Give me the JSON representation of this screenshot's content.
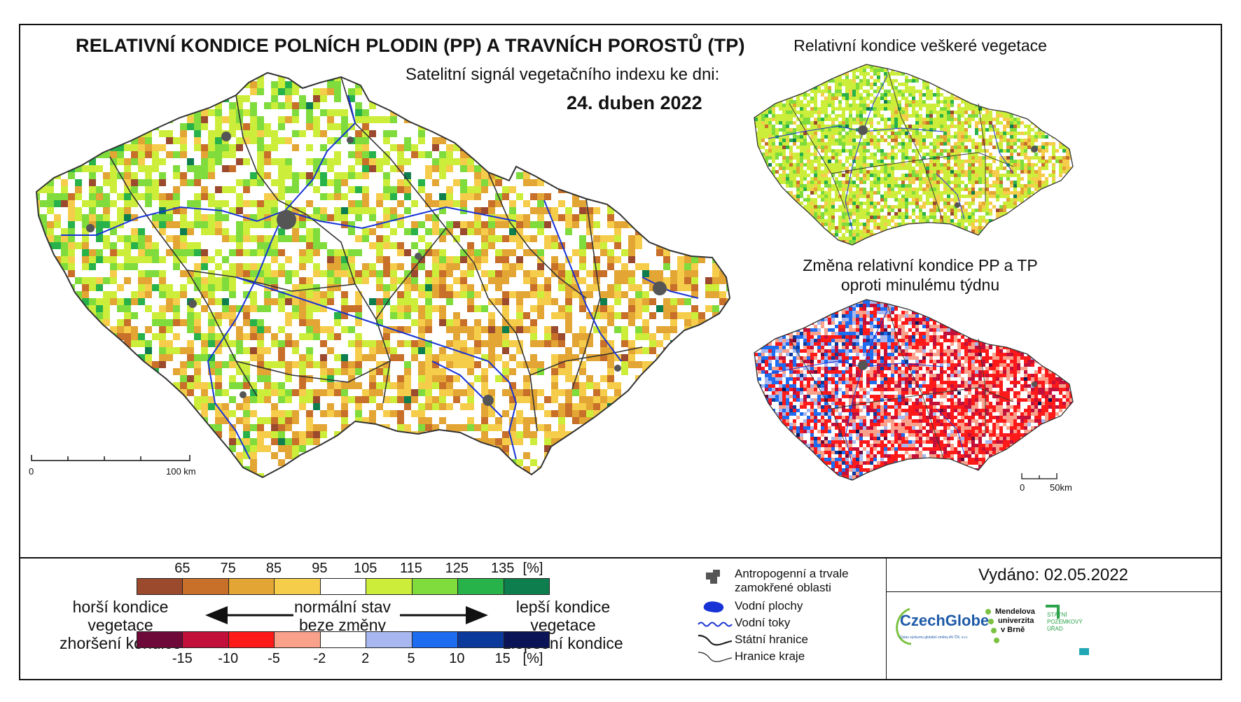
{
  "title": "RELATIVNÍ KONDICE POLNÍCH PLODIN (PP) A TRAVNÍCH POROSTŮ (TP)",
  "subtitle": "Satelitní signál vegetačního indexu ke dni:",
  "date": "24. duben 2022",
  "inset_vegetation_title": "Relativní kondice veškeré vegetace",
  "inset_change_title_line1": "Změna relativní kondice PP a TP",
  "inset_change_title_line2": "oproti minulému týdnu",
  "main_scale": {
    "start": "0",
    "end": "100 km"
  },
  "inset_scale": {
    "start": "0",
    "end": "50km"
  },
  "condition_legend": {
    "ticks": [
      "65",
      "75",
      "85",
      "95",
      "105",
      "115",
      "125",
      "135"
    ],
    "unit": "[%]",
    "colors": [
      "#9b4a2e",
      "#c8702a",
      "#e3a533",
      "#f6cd4a",
      "#ffffff",
      "#ccee3a",
      "#7fdc3c",
      "#28b24a",
      "#0e7e4e"
    ]
  },
  "change_legend": {
    "ticks": [
      "-15",
      "-10",
      "-5",
      "-2",
      "2",
      "5",
      "10",
      "15"
    ],
    "unit": "[%]",
    "colors": [
      "#6d0a3a",
      "#c2103a",
      "#ff1a1a",
      "#f9a18a",
      "#ffffff",
      "#a8b7ef",
      "#1e6cf0",
      "#0c3a9c",
      "#0b1456"
    ]
  },
  "arrows": {
    "worse_line1": "horší kondice vegetace",
    "worse_line2": "zhoršení kondice",
    "normal_line1": "normální stav",
    "normal_line2": "beze změny",
    "better_line1": "lepší kondice vegetace",
    "better_line2": "zlepšení kondice"
  },
  "map_legend": {
    "urban_line1": "Antropogenní a trvale",
    "urban_line2": "zamokřené oblasti",
    "water_bodies": "Vodní plochy",
    "rivers": "Vodní toky",
    "state_border": "Státní hranice",
    "region_border": "Hranice kraje"
  },
  "issued": "Vydáno: 02.05.2022",
  "logos": {
    "czechglobe": "CzechGlobe",
    "czechglobe_sub": "Ústav výzkumu globální změny AV ČR, v.v.i.",
    "mendel_line1": "Mendelova",
    "mendel_line2": "univerzita",
    "mendel_line3": "v Brně",
    "spu_line1": "STÁTNÍ",
    "spu_line2": "POZEMKOVÝ",
    "spu_line3": "ÚŘAD"
  },
  "colors": {
    "river": "#1733d6",
    "urban": "#555555",
    "czechglobe_blue": "#1e5aa8",
    "mendel_green": "#7cc242",
    "spu_green": "#2ca24a",
    "spu_teal": "#22a7b5"
  }
}
